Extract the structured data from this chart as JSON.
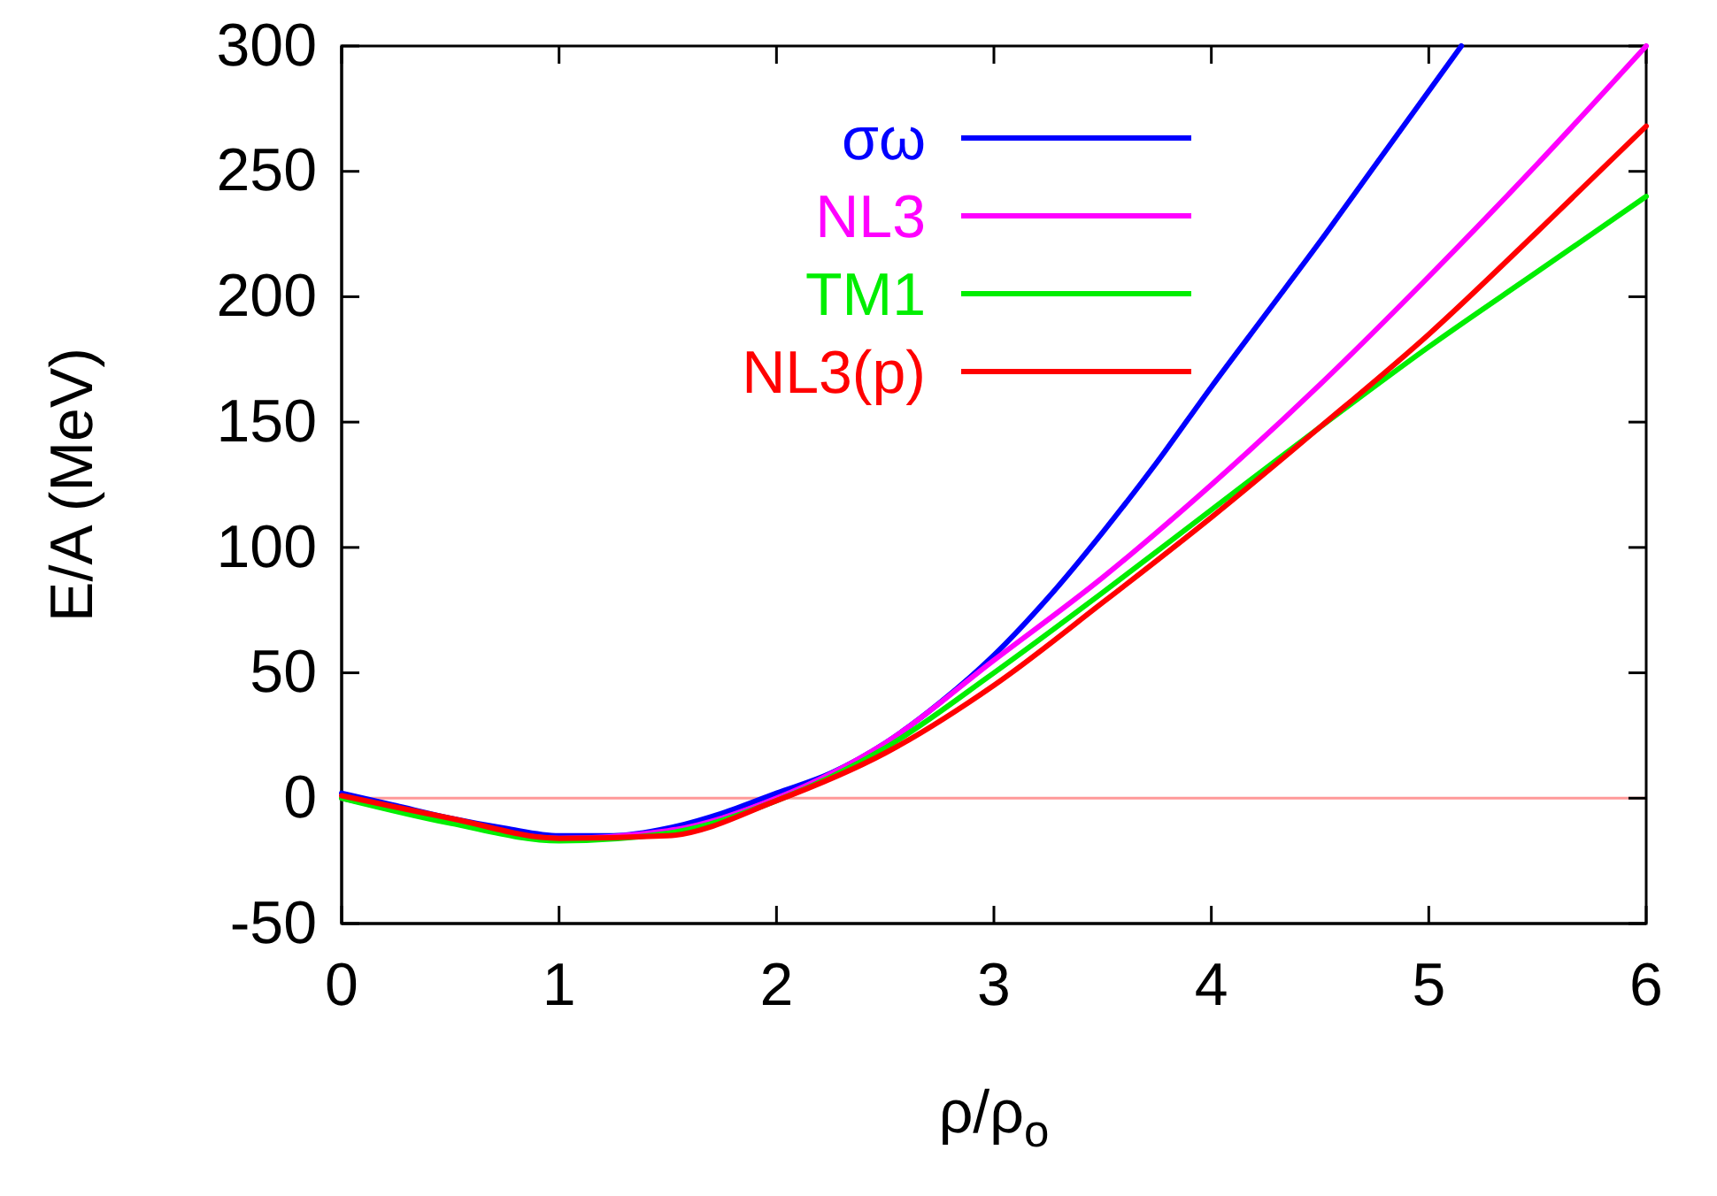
{
  "chart_data": {
    "type": "line",
    "xlabel": "ρ/ρ$_{o}$",
    "ylabel": "E/A (MeV)",
    "xlim": [
      0,
      6
    ],
    "ylim": [
      -50,
      300
    ],
    "xticks": [
      0,
      1,
      2,
      3,
      4,
      5,
      6
    ],
    "yticks": [
      -50,
      0,
      50,
      100,
      150,
      200,
      250,
      300
    ],
    "grid": false,
    "legend": "top left",
    "marker": "none",
    "line_style": "solid",
    "ref_lines": [
      {
        "axis": "y",
        "value": 0,
        "color": "#ff9999"
      }
    ],
    "series": [
      {
        "name": "σω",
        "color": "#0000ff",
        "x": [
          0,
          0.25,
          0.5,
          0.75,
          1,
          1.25,
          1.5,
          1.75,
          2,
          2.25,
          2.5,
          2.75,
          3,
          3.25,
          3.5,
          3.75,
          4,
          4.25,
          4.5,
          4.75,
          5,
          5.15
        ],
        "values": [
          2,
          -3,
          -8,
          -12,
          -15,
          -15,
          -12,
          -6,
          2,
          10,
          22,
          38,
          57,
          80,
          106,
          134,
          164,
          193,
          222,
          252,
          282,
          300
        ]
      },
      {
        "name": "NL3",
        "color": "#ff00ff",
        "x": [
          0,
          0.5,
          1,
          1.5,
          2,
          2.5,
          3,
          3.5,
          4,
          4.5,
          5,
          5.5,
          6
        ],
        "values": [
          0,
          -9,
          -16,
          -13,
          0,
          22,
          55,
          88,
          125,
          165,
          208,
          253,
          300
        ]
      },
      {
        "name": "TM1",
        "color": "#00ee00",
        "x": [
          0,
          0.5,
          1,
          1.5,
          2,
          2.5,
          3,
          3.5,
          4,
          4.5,
          5,
          5.5,
          6
        ],
        "values": [
          0,
          -10,
          -17,
          -14,
          -1,
          20,
          50,
          82,
          115,
          148,
          180,
          210,
          240
        ]
      },
      {
        "name": "NL3(p)",
        "color": "#ff0000",
        "x": [
          0,
          0.5,
          1,
          1.5,
          2,
          2.5,
          3,
          3.5,
          4,
          4.5,
          5,
          5.5,
          6
        ],
        "values": [
          1,
          -8,
          -16,
          -15,
          -1,
          18,
          45,
          78,
          112,
          148,
          185,
          226,
          268
        ]
      }
    ]
  }
}
